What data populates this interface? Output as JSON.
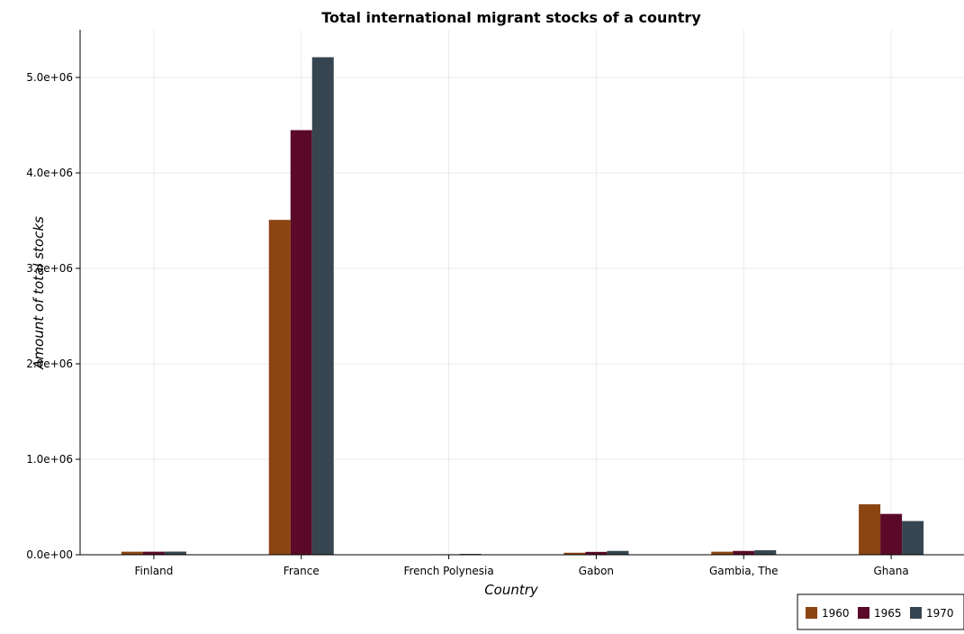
{
  "chart_data": {
    "type": "bar",
    "title": "Total international migrant stocks of a country",
    "xlabel": "Country",
    "ylabel": "Amount of total stocks",
    "categories": [
      "Finland",
      "France",
      "French Polynesia",
      "Gabon",
      "Gambia, The",
      "Ghana"
    ],
    "series": [
      {
        "name": "1960",
        "color": "#8B4513",
        "values": [
          32000,
          3508000,
          3000,
          21000,
          32000,
          529000
        ]
      },
      {
        "name": "1965",
        "color": "#5A0A28",
        "values": [
          32000,
          4448000,
          5000,
          30000,
          40000,
          428000
        ]
      },
      {
        "name": "1970",
        "color": "#36454F",
        "values": [
          33000,
          5212000,
          9000,
          40000,
          47000,
          353000
        ]
      }
    ],
    "ylim": [
      0,
      5500000
    ],
    "yticks": [
      0,
      1000000,
      2000000,
      3000000,
      4000000,
      5000000
    ],
    "ytick_labels": [
      "0.0e+00",
      "1.0e+06",
      "2.0e+06",
      "3.0e+06",
      "4.0e+06",
      "5.0e+06"
    ],
    "grid": true,
    "legend_position": "bottom-right"
  }
}
